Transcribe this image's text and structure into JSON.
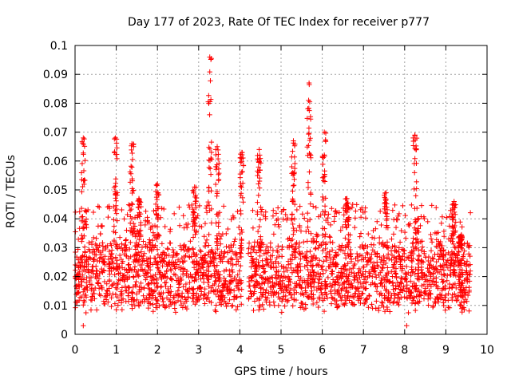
{
  "chart_data": {
    "type": "scatter",
    "title": "Day 177 of 2023, Rate Of TEC Index for receiver p777",
    "xlabel": "GPS time / hours",
    "ylabel": "ROTI / TECUs",
    "xlim": [
      0,
      10
    ],
    "ylim": [
      0,
      0.1
    ],
    "xticks": [
      0,
      1,
      2,
      3,
      4,
      5,
      6,
      7,
      8,
      9,
      10
    ],
    "yticks": [
      0,
      0.01,
      0.02,
      0.03,
      0.04,
      0.05,
      0.06,
      0.07,
      0.08,
      0.09,
      0.1
    ],
    "grid": true,
    "marker": "+",
    "color": "#ff0000",
    "x_extent": [
      0.0,
      9.6
    ],
    "data_gap": [
      4.05,
      4.2
    ],
    "baseline_range": [
      0.01,
      0.03
    ],
    "series": [
      {
        "name": "ROTI",
        "bursts": [
          {
            "x": 0.2,
            "peak": 0.068
          },
          {
            "x": 0.98,
            "peak": 0.068
          },
          {
            "x": 1.38,
            "peak": 0.066
          },
          {
            "x": 1.55,
            "peak": 0.047
          },
          {
            "x": 2.0,
            "peak": 0.052
          },
          {
            "x": 2.9,
            "peak": 0.051
          },
          {
            "x": 3.27,
            "peak": 0.096
          },
          {
            "x": 3.45,
            "peak": 0.065
          },
          {
            "x": 4.05,
            "peak": 0.063
          },
          {
            "x": 4.47,
            "peak": 0.064
          },
          {
            "x": 5.3,
            "peak": 0.067
          },
          {
            "x": 5.68,
            "peak": 0.087
          },
          {
            "x": 6.05,
            "peak": 0.07
          },
          {
            "x": 6.6,
            "peak": 0.047
          },
          {
            "x": 7.55,
            "peak": 0.049
          },
          {
            "x": 8.25,
            "peak": 0.069
          },
          {
            "x": 9.2,
            "peak": 0.046
          },
          {
            "x": 9.35,
            "peak": 0.034
          }
        ],
        "min_points": [
          {
            "x": 0.2,
            "y": 0.003
          },
          {
            "x": 8.05,
            "y": 0.003
          }
        ]
      }
    ]
  }
}
